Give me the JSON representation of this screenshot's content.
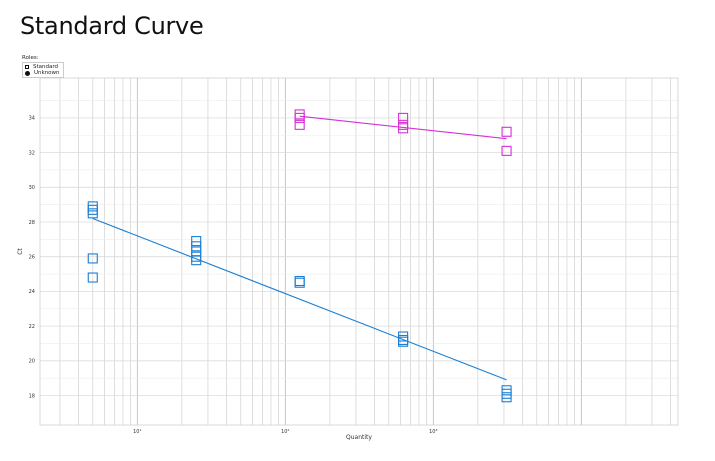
{
  "chart_data": {
    "type": "scatter",
    "title": "Standard Curve",
    "xlabel": "Quantity",
    "ylabel": "Ct",
    "x_scale": "log",
    "xlim": [
      2.2,
      45000
    ],
    "ylim": [
      16.3,
      36.3
    ],
    "yticks": [
      18,
      20,
      22,
      24,
      26,
      28,
      30,
      32,
      34
    ],
    "xtick_labels": [
      {
        "value": 10,
        "label": "10¹"
      },
      {
        "value": 100,
        "label": "10²"
      },
      {
        "value": 1000,
        "label": "10³"
      }
    ],
    "grid": true,
    "legend": {
      "title": "Roles:",
      "placement": "top-left",
      "items": [
        {
          "symbol": "square",
          "label": "Standard"
        },
        {
          "symbol": "dot",
          "label": "Unknown"
        }
      ]
    },
    "series": [
      {
        "color": "#1a7fd4",
        "points": [
          {
            "x": 5,
            "y": 28.9
          },
          {
            "x": 5,
            "y": 28.7
          },
          {
            "x": 5,
            "y": 28.5
          },
          {
            "x": 5,
            "y": 25.9
          },
          {
            "x": 5,
            "y": 24.8
          },
          {
            "x": 25,
            "y": 26.9
          },
          {
            "x": 25,
            "y": 26.6
          },
          {
            "x": 25,
            "y": 26.3
          },
          {
            "x": 25,
            "y": 26.0
          },
          {
            "x": 25,
            "y": 25.8
          },
          {
            "x": 125,
            "y": 24.6
          },
          {
            "x": 125,
            "y": 24.5
          },
          {
            "x": 625,
            "y": 21.4
          },
          {
            "x": 625,
            "y": 21.2
          },
          {
            "x": 625,
            "y": 21.1
          },
          {
            "x": 3125,
            "y": 18.3
          },
          {
            "x": 3125,
            "y": 18.1
          },
          {
            "x": 3125,
            "y": 17.9
          }
        ],
        "fit": [
          {
            "x": 5,
            "y": 28.2
          },
          {
            "x": 3125,
            "y": 18.9
          }
        ]
      },
      {
        "color": "#d62fd6",
        "points": [
          {
            "x": 125,
            "y": 34.2
          },
          {
            "x": 125,
            "y": 34.0
          },
          {
            "x": 125,
            "y": 33.6
          },
          {
            "x": 625,
            "y": 34.0
          },
          {
            "x": 625,
            "y": 33.6
          },
          {
            "x": 625,
            "y": 33.4
          },
          {
            "x": 3125,
            "y": 33.2
          },
          {
            "x": 3125,
            "y": 32.1
          }
        ],
        "fit": [
          {
            "x": 125,
            "y": 34.1
          },
          {
            "x": 3125,
            "y": 32.8
          }
        ]
      }
    ]
  }
}
